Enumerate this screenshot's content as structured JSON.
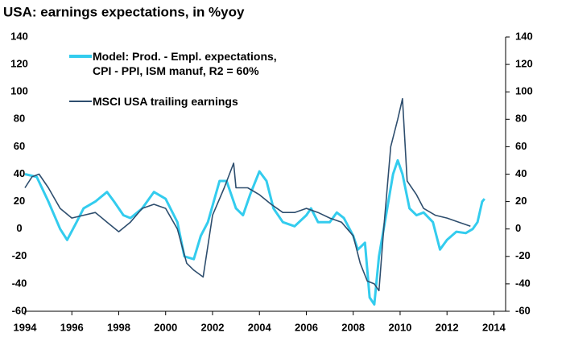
{
  "chart_data": {
    "type": "line",
    "title": "USA: earnings expectations, in %yoy",
    "xlim": [
      1994,
      2014.5
    ],
    "xticks": [
      1994,
      1996,
      1998,
      2000,
      2002,
      2004,
      2006,
      2008,
      2010,
      2012,
      2014
    ],
    "ylim": [
      -60,
      140
    ],
    "yticks": [
      -60,
      -40,
      -20,
      0,
      20,
      40,
      60,
      80,
      100,
      120,
      140
    ],
    "y2lim": [
      -60,
      140
    ],
    "y2ticks": [
      -60,
      -40,
      -20,
      0,
      20,
      40,
      60,
      80,
      100,
      120,
      140
    ],
    "legend": "upper left",
    "series": [
      {
        "name": "Model: Prod. - Empl. expectations, CPI - PPI, ISM manuf, R2 = 60%",
        "color": "#33ccee",
        "x": [
          1994.0,
          1994.5,
          1995.0,
          1995.5,
          1995.8,
          1996.2,
          1996.5,
          1997.0,
          1997.5,
          1997.8,
          1998.2,
          1998.5,
          1999.0,
          1999.5,
          2000.0,
          2000.5,
          2000.8,
          2001.2,
          2001.5,
          2001.8,
          2002.3,
          2002.6,
          2003.0,
          2003.3,
          2003.6,
          2004.0,
          2004.3,
          2004.6,
          2005.0,
          2005.5,
          2006.0,
          2006.2,
          2006.5,
          2007.0,
          2007.3,
          2007.6,
          2008.0,
          2008.2,
          2008.5,
          2008.7,
          2008.9,
          2009.1,
          2009.4,
          2009.7,
          2009.9,
          2010.1,
          2010.4,
          2010.7,
          2011.0,
          2011.4,
          2011.7,
          2012.0,
          2012.4,
          2012.8,
          2013.1,
          2013.3,
          2013.5,
          2013.6
        ],
        "values": [
          40,
          38,
          20,
          0,
          -8,
          5,
          15,
          20,
          27,
          20,
          10,
          8,
          15,
          27,
          22,
          5,
          -20,
          -22,
          -5,
          5,
          35,
          35,
          15,
          10,
          25,
          42,
          35,
          15,
          5,
          2,
          10,
          15,
          5,
          5,
          12,
          8,
          -5,
          -15,
          -10,
          -50,
          -55,
          -20,
          10,
          40,
          50,
          40,
          15,
          10,
          12,
          5,
          -15,
          -8,
          -2,
          -3,
          0,
          5,
          20,
          22
        ]
      },
      {
        "name": "MSCI USA trailing earnings",
        "color": "#2e4e6e",
        "x": [
          1994.0,
          1994.3,
          1994.6,
          1995.0,
          1995.5,
          1996.0,
          1996.5,
          1997.0,
          1997.5,
          1998.0,
          1998.5,
          1999.0,
          1999.5,
          2000.0,
          2000.5,
          2000.9,
          2001.2,
          2001.6,
          2002.0,
          2002.5,
          2002.9,
          2003.0,
          2003.5,
          2004.0,
          2004.5,
          2005.0,
          2005.5,
          2006.0,
          2006.5,
          2007.0,
          2007.5,
          2008.0,
          2008.3,
          2008.6,
          2008.9,
          2009.1,
          2009.3,
          2009.6,
          2009.9,
          2010.1,
          2010.3,
          2010.7,
          2011.0,
          2011.5,
          2012.0,
          2012.5,
          2013.0
        ],
        "values": [
          30,
          38,
          40,
          30,
          15,
          8,
          10,
          12,
          5,
          -2,
          5,
          15,
          18,
          15,
          0,
          -25,
          -30,
          -35,
          10,
          30,
          48,
          30,
          30,
          25,
          18,
          12,
          12,
          15,
          12,
          8,
          5,
          -5,
          -25,
          -38,
          -40,
          -45,
          0,
          60,
          80,
          95,
          35,
          25,
          15,
          10,
          8,
          5,
          2
        ]
      }
    ]
  }
}
